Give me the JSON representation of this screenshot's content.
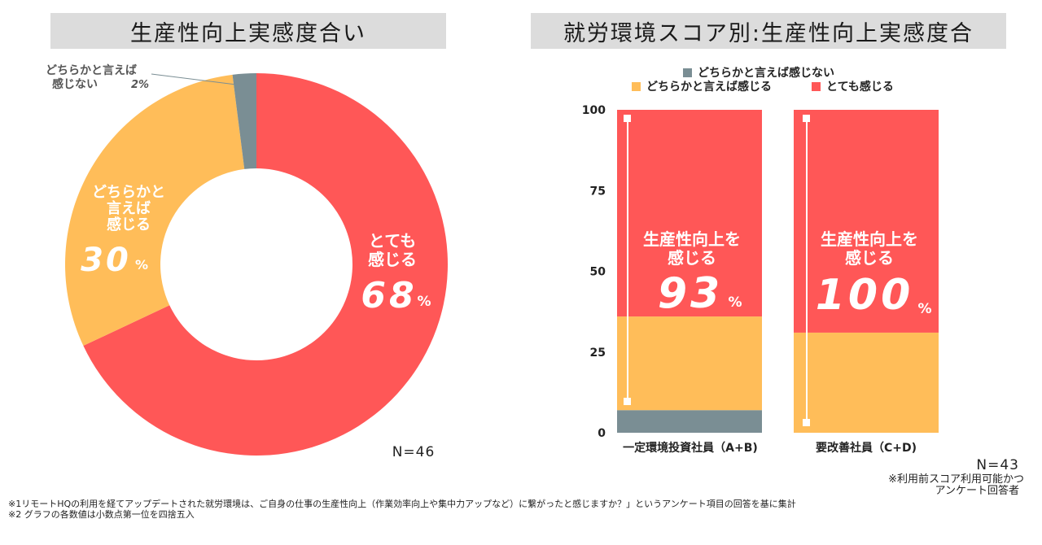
{
  "left": {
    "title": "生産性向上実感度合い",
    "n_label": "N=46",
    "labels": {
      "neg_line1": "どちらかと言えば",
      "neg_line2": "感じない",
      "neg_pct": "2%",
      "mid_line1": "どちらかと",
      "mid_line2": "言えば",
      "mid_line3": "感じる",
      "mid_pct": "30",
      "pos_line1": "とても",
      "pos_line2": "感じる",
      "pos_pct": "68",
      "pct_sign": "%"
    }
  },
  "right": {
    "title": "就労環境スコア別:生産性向上実感度合",
    "n_label": "N=43",
    "footnote_line1": "※利用前スコア利用可能かつ",
    "footnote_line2": "アンケート回答者",
    "annotation_line1": "生産性向上を",
    "annotation_line2": "感じる",
    "annotation_pct_a": "93",
    "annotation_pct_b": "100",
    "pct_sign": "%"
  },
  "notes": {
    "line1": "※1リモートHQの利用を経てアップデートされた就労環境は、ご自身の仕事の生産性向上（作業効率向上や集中力アップなど）に繋がったと感じますか？」というアンケート項目の回答を基に集計",
    "line2": "※2 グラフの各数値は小数点第一位を四捨五入"
  },
  "colors": {
    "red": "#ff5757",
    "yellow": "#ffbd59",
    "gray": "#7a8e94",
    "title_bg": "#dcdcdc"
  },
  "chart_data": [
    {
      "type": "pie",
      "title": "生産性向上実感度合い",
      "categories": [
        "とても感じる",
        "どちらかと言えば感じる",
        "どちらかと言えば感じない"
      ],
      "values": [
        68,
        30,
        2
      ],
      "colors": [
        "#ff5757",
        "#ffbd59",
        "#7a8e94"
      ]
    },
    {
      "type": "bar",
      "stacked": true,
      "title": "就労環境スコア別:生産性向上実感度合",
      "categories": [
        "一定環境投資社員（A+B)",
        "要改善社員（C+D)"
      ],
      "series": [
        {
          "name": "どちらかと言えば感じない",
          "values": [
            7,
            0
          ],
          "color": "#7a8e94"
        },
        {
          "name": "どちらかと言えば感じる",
          "values": [
            29,
            31
          ],
          "color": "#ffbd59"
        },
        {
          "name": "とても感じる",
          "values": [
            64,
            69
          ],
          "color": "#ff5757"
        }
      ],
      "yticks": [
        0,
        25,
        50,
        75,
        100
      ],
      "ylim": [
        0,
        100
      ],
      "legend": "top",
      "grid": false
    }
  ]
}
